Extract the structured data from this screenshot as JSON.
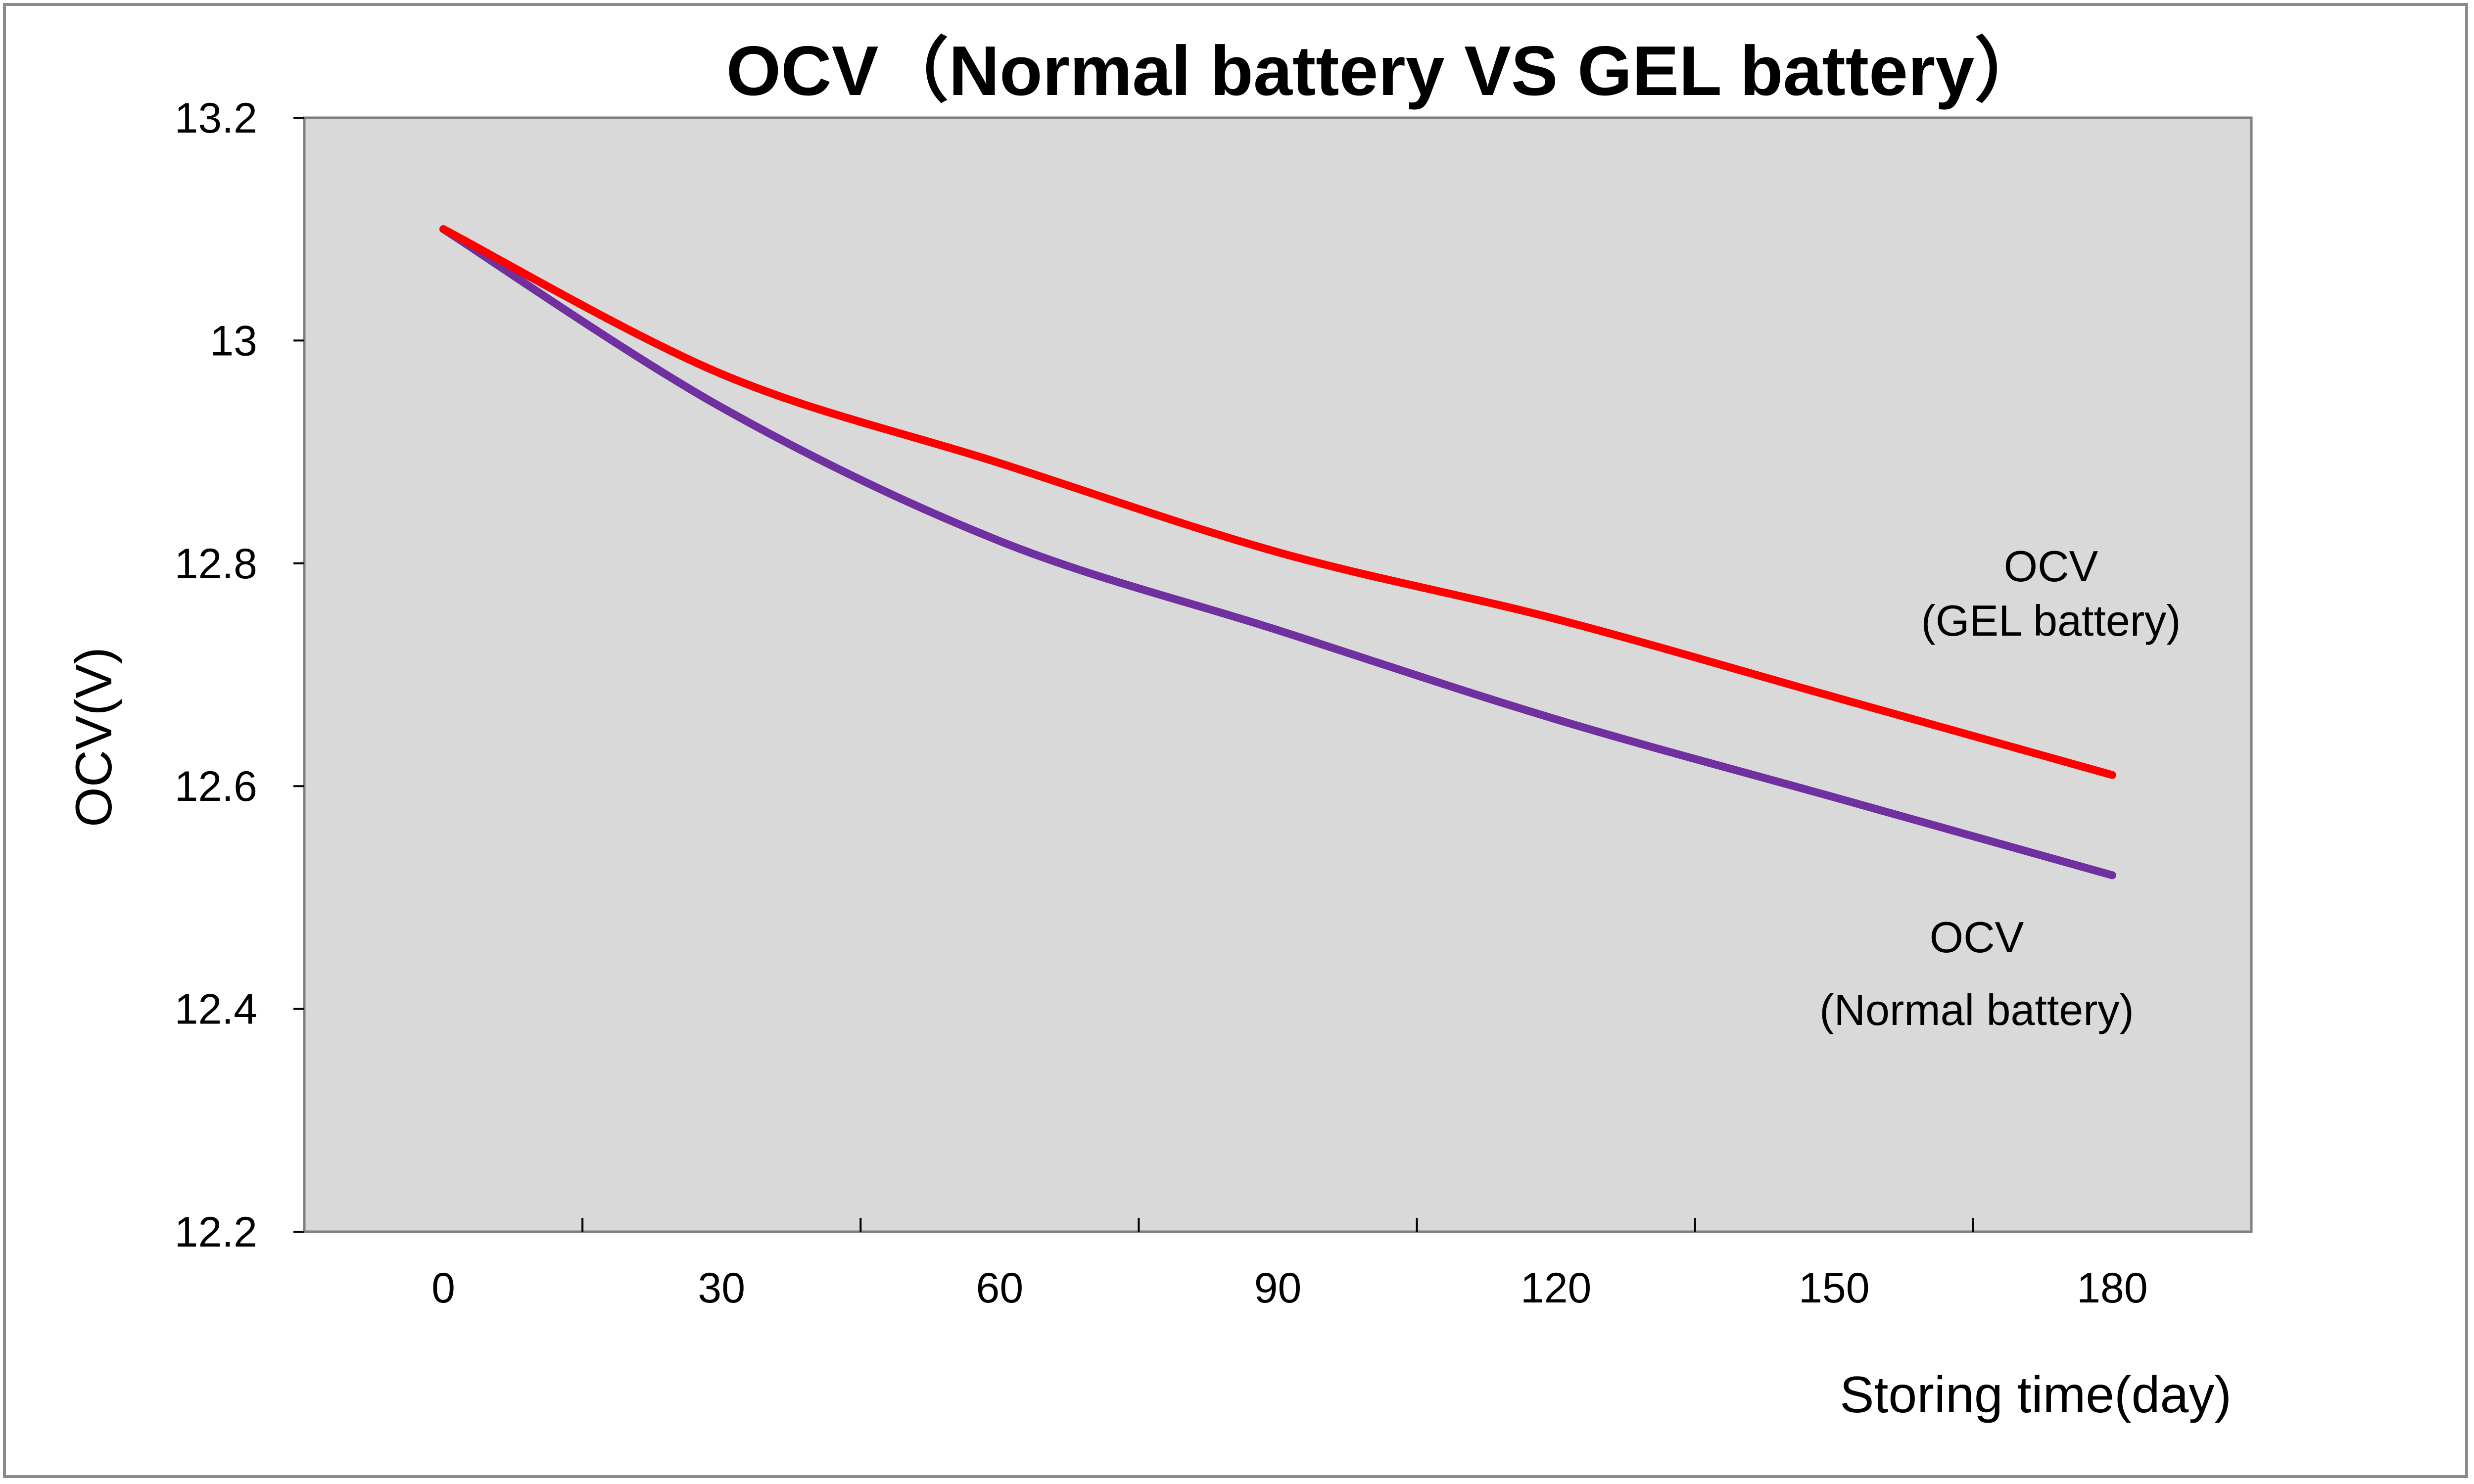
{
  "chart_data": {
    "type": "line",
    "title": "OCV（Normal battery VS GEL battery）",
    "xlabel": "Storing time(day)",
    "ylabel": "OCV(V)",
    "x": [
      0,
      30,
      60,
      90,
      120,
      150,
      180
    ],
    "xlim": [
      -15,
      195
    ],
    "ylim": [
      12.2,
      13.2
    ],
    "yticks": [
      12.2,
      12.4,
      12.6,
      12.8,
      13,
      13.2
    ],
    "ytick_labels": [
      "12.2",
      "12.4",
      "12.6",
      "12.8",
      "13",
      "13.2"
    ],
    "xticks": [
      0,
      30,
      60,
      90,
      120,
      150,
      180
    ],
    "xtick_labels": [
      "0",
      "30",
      "60",
      "90",
      "120",
      "150",
      "180"
    ],
    "grid": false,
    "plot_background": "#d9d9d9",
    "series": [
      {
        "id": "gel",
        "values": [
          13.1,
          12.97,
          12.89,
          12.81,
          12.75,
          12.68,
          12.61
        ],
        "color": "#ff0000",
        "label_lines": [
          "OCV",
          "(GEL battery)"
        ]
      },
      {
        "id": "normal",
        "values": [
          13.1,
          12.94,
          12.82,
          12.74,
          12.66,
          12.59,
          12.52
        ],
        "color": "#7030a0",
        "label_lines": [
          "OCV",
          "(Normal battery)"
        ]
      }
    ]
  }
}
